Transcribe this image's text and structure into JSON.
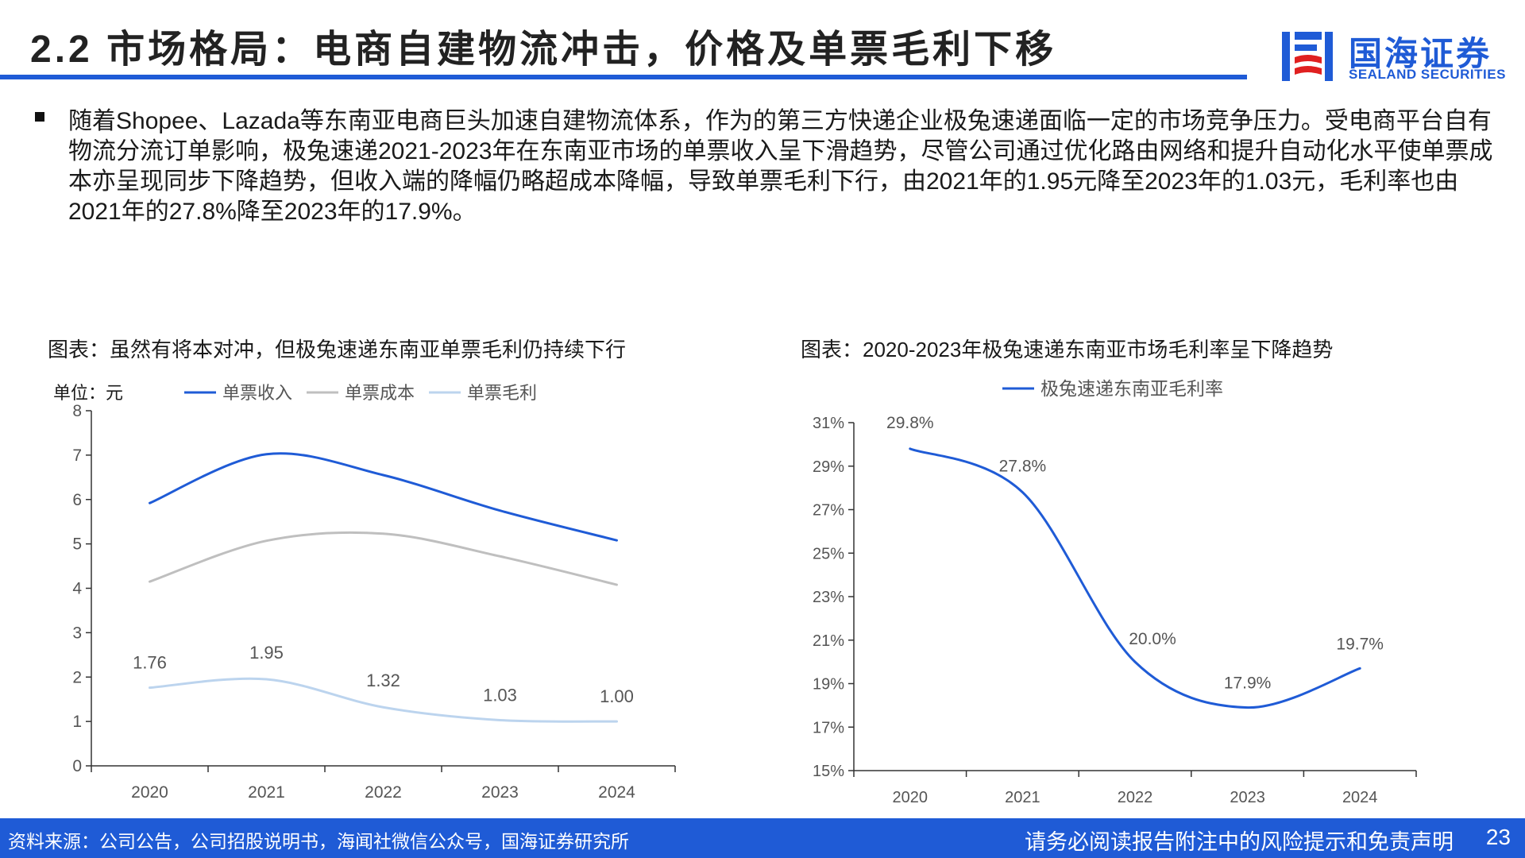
{
  "header": {
    "title": "2.2 市场格局：电商自建物流冲击，价格及单票毛利下移",
    "logo_cn": "国海证券",
    "logo_en": "SEALAND SECURITIES"
  },
  "body_text": "随着Shopee、Lazada等东南亚电商巨头加速自建物流体系，作为的第三方快递企业极兔速递面临一定的市场竞争压力。受电商平台自有物流分流订单影响，极兔速递2021-2023年在东南亚市场的单票收入呈下滑趋势，尽管公司通过优化路由网络和提升自动化水平使单票成本亦呈现同步下降趋势，但收入端的降幅仍略超成本降幅，导致单票毛利下行，由2021年的1.95元降至2023年的1.03元，毛利率也由2021年的27.8%降至2023年的17.9%。",
  "chart_data": [
    {
      "type": "line",
      "caption": "图表：虽然有将本对冲，但极兔速递东南亚单票毛利仍持续下行",
      "unit_label": "单位：元",
      "categories": [
        "2020",
        "2021",
        "2022",
        "2023",
        "2024"
      ],
      "ylim": [
        0,
        8
      ],
      "yticks": [
        "0",
        "1",
        "2",
        "3",
        "4",
        "5",
        "6",
        "7",
        "8"
      ],
      "series": [
        {
          "name": "单票收入",
          "color": "#1f5bd6",
          "values": [
            5.92,
            7.02,
            6.55,
            5.75,
            5.08
          ],
          "labels": null
        },
        {
          "name": "单票成本",
          "color": "#bfbfbf",
          "values": [
            4.15,
            5.07,
            5.23,
            4.72,
            4.08
          ],
          "labels": null
        },
        {
          "name": "单票毛利",
          "color": "#bcd4ee",
          "values": [
            1.76,
            1.95,
            1.32,
            1.03,
            1.0
          ],
          "labels": [
            "1.76",
            "1.95",
            "1.32",
            "1.03",
            "1.00"
          ]
        }
      ]
    },
    {
      "type": "line",
      "caption": "图表：2020-2023年极兔速递东南亚市场毛利率呈下降趋势",
      "categories": [
        "2020",
        "2021",
        "2022",
        "2023",
        "2024"
      ],
      "ylim": [
        15,
        31
      ],
      "yticks": [
        "15%",
        "17%",
        "19%",
        "21%",
        "23%",
        "25%",
        "27%",
        "29%",
        "31%"
      ],
      "series": [
        {
          "name": "极兔速递东南亚毛利率",
          "color": "#1f5bd6",
          "values": [
            29.8,
            27.8,
            20.0,
            17.9,
            19.7
          ],
          "labels": [
            "29.8%",
            "27.8%",
            "20.0%",
            "17.9%",
            "19.7%"
          ]
        }
      ]
    }
  ],
  "footer": {
    "source": "资料来源：公司公告，公司招股说明书，海闻社微信公众号，国海证券研究所",
    "disclaimer": "请务必阅读报告附注中的风险提示和免责声明",
    "page_number": "23"
  }
}
